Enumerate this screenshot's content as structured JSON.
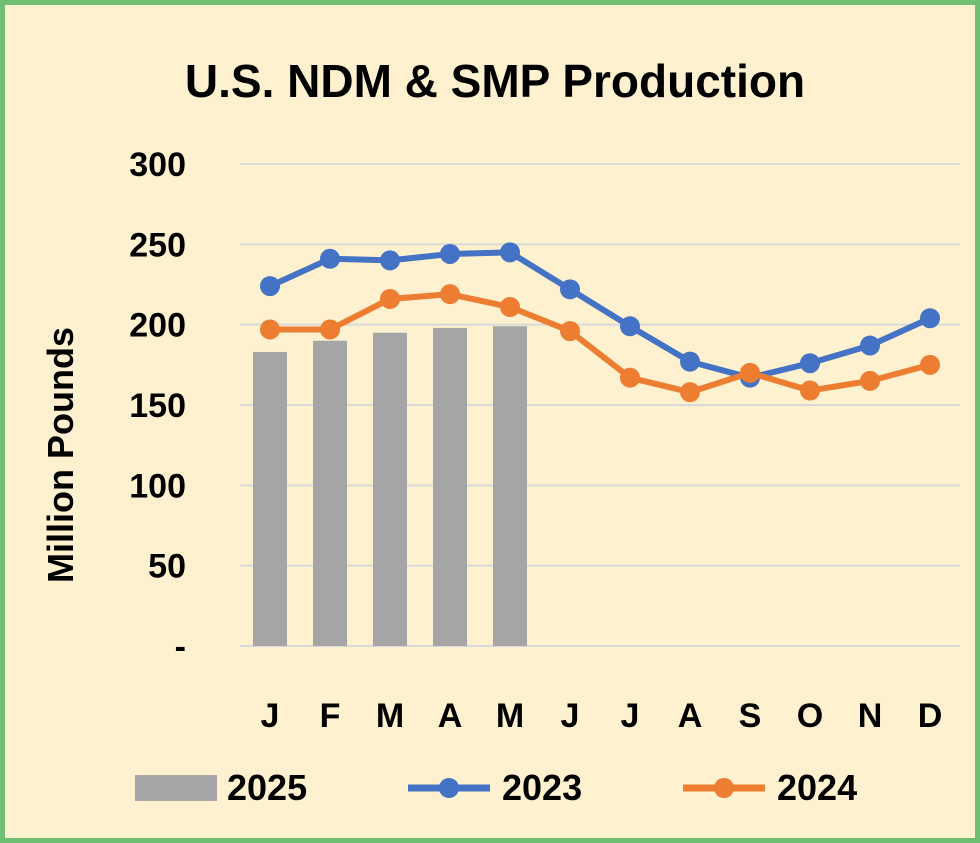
{
  "colors": {
    "background": "#fdf1cf",
    "border": "#6fbf73",
    "bar_2025": "#a5a5a5",
    "line_2023": "#4472c4",
    "line_2024": "#ed7d31",
    "gridline": "#d9d9d9"
  },
  "chart_data": {
    "type": "bar",
    "title": "U.S. NDM & SMP Production",
    "xlabel": "",
    "ylabel": "Million Pounds",
    "categories": [
      "J",
      "F",
      "M",
      "A",
      "M",
      "J",
      "J",
      "A",
      "S",
      "O",
      "N",
      "D"
    ],
    "ylim": [
      0,
      300
    ],
    "yticks": [
      0,
      50,
      100,
      150,
      200,
      250,
      300
    ],
    "ytick_labels": [
      "-",
      "50",
      "100",
      "150",
      "200",
      "250",
      "300"
    ],
    "grid": true,
    "legend_position": "bottom",
    "series": [
      {
        "name": "2025",
        "type": "bar",
        "color": "#a5a5a5",
        "values": [
          183,
          190,
          195,
          198,
          199,
          null,
          null,
          null,
          null,
          null,
          null,
          null
        ]
      },
      {
        "name": "2023",
        "type": "line",
        "color": "#4472c4",
        "values": [
          224,
          241,
          240,
          244,
          245,
          222,
          199,
          177,
          167,
          176,
          187,
          204
        ]
      },
      {
        "name": "2024",
        "type": "line",
        "color": "#ed7d31",
        "values": [
          197,
          197,
          216,
          219,
          211,
          196,
          167,
          158,
          170,
          159,
          165,
          175
        ]
      }
    ]
  }
}
